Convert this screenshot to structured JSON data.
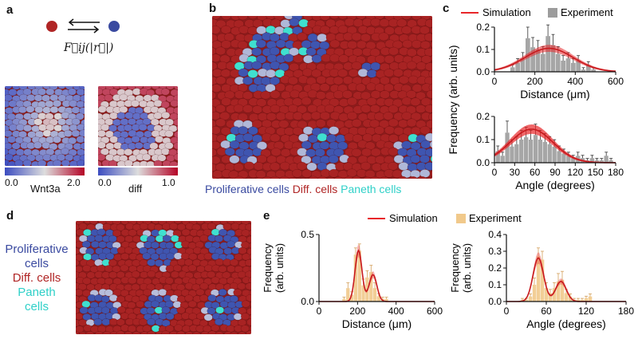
{
  "panels": {
    "a": {
      "label": "a",
      "force_label": "F⃗ij(|r⃗|)",
      "colorbar1": {
        "min": "0.0",
        "max": "2.0",
        "name": "Wnt3a"
      },
      "colorbar2": {
        "min": "0.0",
        "max": "1.0",
        "name": "diff"
      }
    },
    "b": {
      "label": "b",
      "legend": {
        "prolif": "Proliferative cells",
        "diff": "Diff. cells",
        "paneth": "Paneth cells"
      }
    },
    "c": {
      "label": "c",
      "ylabel": "Frequency (arb. units)"
    },
    "d": {
      "label": "d",
      "legend": {
        "prolif_1": "Proliferative",
        "prolif_2": "cells",
        "diff": "Diff. cells",
        "paneth_1": "Paneth",
        "paneth_2": "cells"
      }
    },
    "e": {
      "label": "e"
    }
  },
  "colors": {
    "simulation": "#e8262a",
    "experiment_c": "#9c9c9c",
    "experiment_e": "#f1c98b",
    "prolif": "#3a4aa0",
    "diff": "#b02525",
    "paneth": "#3fe0d0"
  },
  "legend_c": {
    "sim": "Simulation",
    "exp": "Experiment"
  },
  "legend_e": {
    "sim": "Simulation",
    "exp": "Experiment"
  },
  "chart_data": [
    {
      "id": "c-top",
      "type": "bar",
      "xlabel": "Distance (μm)",
      "ylabel": "",
      "xlim": [
        0,
        600
      ],
      "ylim": [
        0,
        0.2
      ],
      "xticks": [
        "0",
        "200",
        "400",
        "600"
      ],
      "yticks": [
        "0.0",
        "0.1",
        "0.2"
      ],
      "bin_centers": [
        90,
        115,
        140,
        165,
        190,
        215,
        240,
        265,
        290,
        315,
        340,
        365,
        390,
        415,
        440,
        465,
        490
      ],
      "series": [
        {
          "name": "Experiment",
          "values": [
            0.02,
            0.04,
            0.06,
            0.15,
            0.11,
            0.1,
            0.08,
            0.16,
            0.12,
            0.08,
            0.05,
            0.06,
            0.04,
            0.05,
            0.01,
            0.03,
            0.01
          ]
        },
        {
          "name": "Simulation",
          "mean": 270,
          "sd": 120,
          "peak": 0.105
        }
      ]
    },
    {
      "id": "c-bottom",
      "type": "bar",
      "xlabel": "Angle (degrees)",
      "ylabel": "",
      "xlim": [
        0,
        180
      ],
      "ylim": [
        0,
        0.2
      ],
      "xticks": [
        "0",
        "30",
        "60",
        "90",
        "120",
        "150",
        "180"
      ],
      "yticks": [
        "0.0",
        "0.1",
        "0.2"
      ],
      "bin_centers": [
        5,
        12,
        19,
        26,
        33,
        40,
        47,
        54,
        61,
        68,
        75,
        82,
        89,
        96,
        103,
        110,
        117,
        124,
        131,
        138,
        145,
        152,
        159,
        166,
        173
      ],
      "series": [
        {
          "name": "Experiment",
          "values": [
            0.05,
            0.03,
            0.13,
            0.07,
            0.08,
            0.1,
            0.11,
            0.1,
            0.12,
            0.1,
            0.09,
            0.08,
            0.07,
            0.05,
            0.04,
            0.03,
            0.02,
            0.03,
            0.02,
            0.01,
            0.02,
            0.01,
            0.01,
            0.03,
            0.01
          ]
        },
        {
          "name": "Simulation",
          "mean": 55,
          "sd": 32,
          "peak": 0.145
        }
      ]
    },
    {
      "id": "e-left",
      "type": "bar",
      "xlabel": "Distance (μm)",
      "ylabel": "Frequency (arb. units)",
      "xlim": [
        0,
        600
      ],
      "ylim": [
        0,
        0.5
      ],
      "xticks": [
        "0",
        "200",
        "400",
        "600"
      ],
      "yticks": [
        "0.0",
        "0.5"
      ],
      "bin_centers": [
        130,
        150,
        170,
        190,
        210,
        230,
        250,
        270,
        290,
        310,
        330,
        350
      ],
      "series": [
        {
          "name": "Experiment",
          "values": [
            0.02,
            0.1,
            0.05,
            0.35,
            0.38,
            0.12,
            0.18,
            0.22,
            0.1,
            0.04,
            0.02,
            0.02
          ]
        },
        {
          "name": "Simulation",
          "peaks": [
            [
              205,
              18,
              0.38
            ],
            [
              280,
              20,
              0.2
            ]
          ]
        }
      ]
    },
    {
      "id": "e-right",
      "type": "bar",
      "xlabel": "Angle (degrees)",
      "ylabel": "Frequency (arb. units)",
      "xlim": [
        0,
        180
      ],
      "ylim": [
        0,
        0.4
      ],
      "xticks": [
        "0",
        "60",
        "120",
        "180"
      ],
      "yticks": [
        "0.0",
        "0.1",
        "0.2",
        "0.3",
        "0.4"
      ],
      "bin_centers": [
        24,
        30,
        36,
        42,
        48,
        54,
        60,
        66,
        72,
        78,
        84,
        90,
        96,
        102,
        108,
        114,
        120,
        126
      ],
      "series": [
        {
          "name": "Experiment",
          "values": [
            0.01,
            0.01,
            0.03,
            0.1,
            0.27,
            0.25,
            0.08,
            0.05,
            0.08,
            0.12,
            0.13,
            0.05,
            0.03,
            0.01,
            0.01,
            0.01,
            0.02,
            0.03
          ]
        },
        {
          "name": "Simulation",
          "peaks": [
            [
              48,
              8,
              0.26
            ],
            [
              82,
              8,
              0.12
            ]
          ]
        }
      ]
    }
  ]
}
